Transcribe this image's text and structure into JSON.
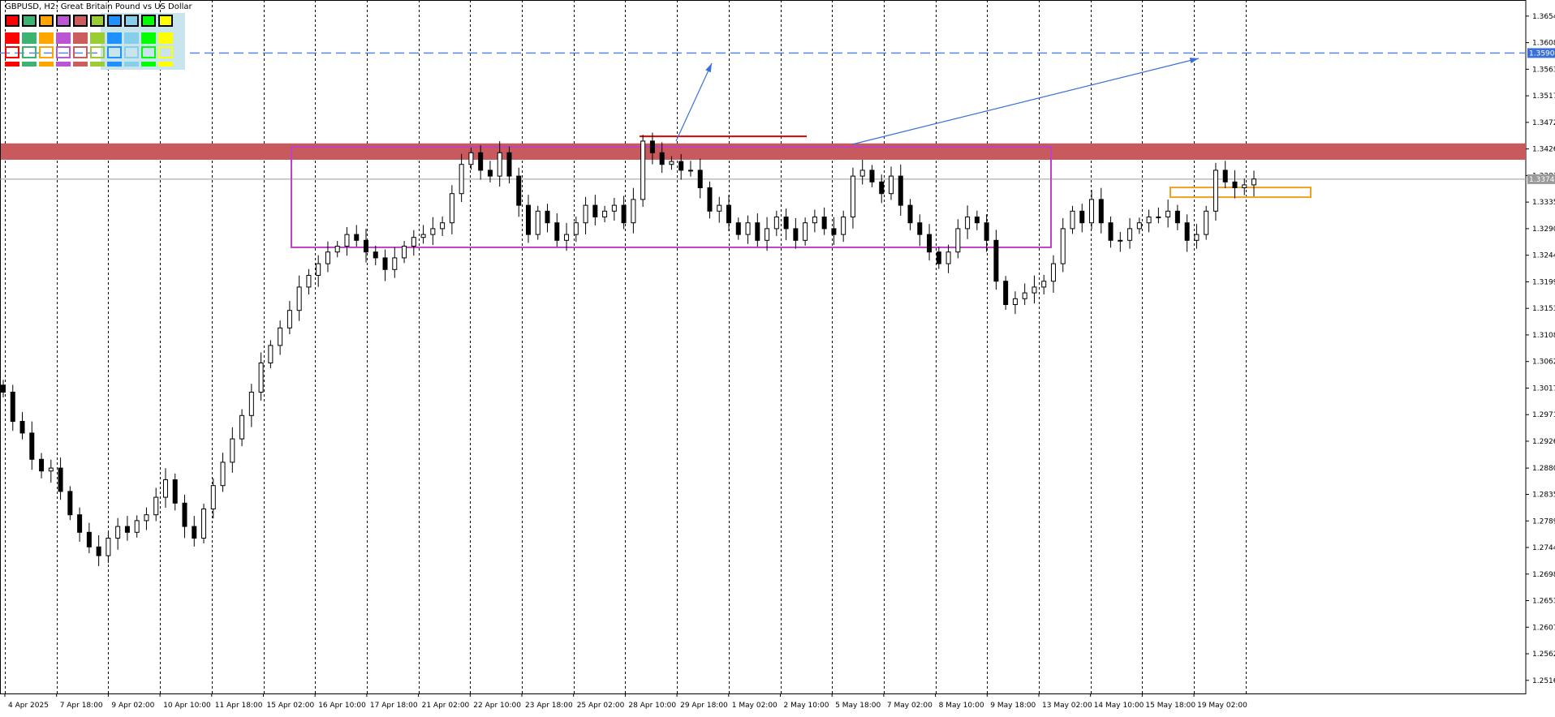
{
  "header": {
    "symbol": "GBPUSD",
    "timeframe": "H2",
    "description": "Great Britain Pound vs US Dollar",
    "full_text": "GBPUSD, H2:  Great Britain Pound vs US Dollar"
  },
  "palette": {
    "colors": [
      "#ff0000",
      "#3cb371",
      "#ffa500",
      "#ba55d3",
      "#cd5c5c",
      "#9acd32",
      "#1e90ff",
      "#87ceeb",
      "#00ff00",
      "#ffff00"
    ]
  },
  "chart_data": {
    "type": "candlestick",
    "y_ticks": [
      "1.36540",
      "1.36085",
      "1.35630",
      "1.35175",
      "1.34720",
      "1.34265",
      "1.33810",
      "1.33355",
      "1.32900",
      "1.32445",
      "1.31990",
      "1.31535",
      "1.31080",
      "1.30625",
      "1.30170",
      "1.29715",
      "1.29260",
      "1.28800",
      "1.28350",
      "1.27895",
      "1.27440",
      "1.26985",
      "1.26530",
      "1.26075",
      "1.25620",
      "1.25165"
    ],
    "ylim": [
      1.2494,
      1.3676
    ],
    "price_labels": {
      "current": "1.33747",
      "target": "1.35907"
    },
    "x_labels": [
      "4 Apr 2025",
      "7 Apr 18:00",
      "9 Apr 02:00",
      "10 Apr 10:00",
      "11 Apr 18:00",
      "15 Apr 02:00",
      "16 Apr 10:00",
      "17 Apr 18:00",
      "21 Apr 02:00",
      "22 Apr 10:00",
      "23 Apr 18:00",
      "25 Apr 02:00",
      "28 Apr 10:00",
      "29 Apr 18:00",
      "1 May 02:00",
      "2 May 10:00",
      "5 May 18:00",
      "7 May 02:00",
      "8 May 10:00",
      "9 May 18:00",
      "13 May 02:00",
      "14 May 10:00",
      "15 May 18:00",
      "19 May 02:00"
    ],
    "series": [
      {
        "values": [
          1.301,
          1.296,
          1.294,
          1.2895,
          1.2875,
          1.288,
          1.284,
          1.28,
          1.277,
          1.2745,
          1.273,
          1.276,
          1.278,
          1.277,
          1.279,
          1.28,
          1.283,
          1.286,
          1.282,
          1.278,
          1.276,
          1.281,
          1.285,
          1.289,
          1.293,
          1.297,
          1.301,
          1.306,
          1.309,
          1.312,
          1.315,
          1.319,
          1.321,
          1.323,
          1.325,
          1.326,
          1.328,
          1.327,
          1.325,
          1.324,
          1.322,
          1.324,
          1.326,
          1.3275,
          1.328,
          1.329,
          1.33,
          1.335,
          1.34,
          1.342,
          1.339,
          1.338,
          1.342,
          1.338,
          1.333,
          1.328,
          1.332,
          1.33,
          1.327,
          1.328,
          1.33,
          1.333,
          1.331,
          1.332,
          1.333,
          1.33,
          1.334,
          1.344,
          1.342,
          1.34,
          1.3405,
          1.339,
          1.339,
          1.336,
          1.332,
          1.333,
          1.33,
          1.328,
          1.33,
          1.327,
          1.329,
          1.331,
          1.329,
          1.327,
          1.33,
          1.331,
          1.329,
          1.328,
          1.331,
          1.338,
          1.339,
          1.337,
          1.335,
          1.338,
          1.333,
          1.33,
          1.328,
          1.325,
          1.323,
          1.325,
          1.329,
          1.331,
          1.33,
          1.327,
          1.32,
          1.316,
          1.317,
          1.318,
          1.319,
          1.32,
          1.323,
          1.329,
          1.332,
          1.33,
          1.334,
          1.33,
          1.327,
          1.327,
          1.329,
          1.33,
          1.331,
          1.331,
          1.332,
          1.33,
          1.327,
          1.328,
          1.332,
          1.339,
          1.337,
          1.336,
          1.3365,
          1.3375
        ]
      }
    ],
    "levels": {
      "resistance_zone": [
        1.3408,
        1.3436
      ],
      "range_box": [
        1.3258,
        1.343
      ],
      "target_line": 1.35907,
      "current_price_line": 1.33747,
      "breakout_line": 1.3448,
      "order_box": [
        1.334,
        1.3355
      ]
    }
  }
}
